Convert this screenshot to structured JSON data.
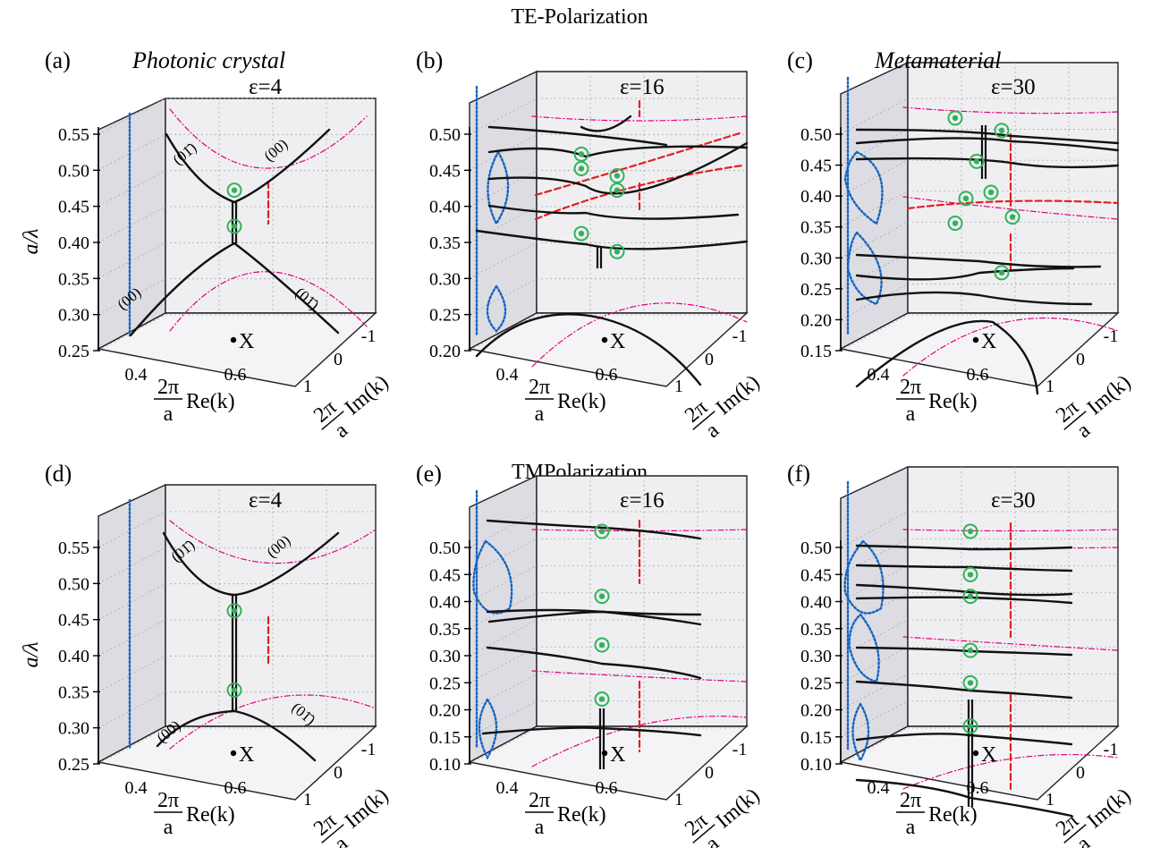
{
  "section_titles": {
    "te": "TE-Polarization",
    "tm": "TMPolarization"
  },
  "annotations": {
    "photonic": "Photonic crystal",
    "meta": "Metamaterial",
    "x_point": "X"
  },
  "axis_text": {
    "re_label": "Re(k)",
    "im_label": "Im(k)",
    "two_pi": "2π",
    "a": "a",
    "ylabel": "a/λ",
    "re_ticks": [
      "0.4",
      "0.6"
    ],
    "im_ticks": [
      "1",
      "0",
      "-1"
    ]
  },
  "colors": {
    "bands": "#111111",
    "dispersion": "#1565c0",
    "light_line": "#e0007a",
    "gap_line": "#e02020",
    "exceptional_point": "#2fb35a",
    "plane": "#efeff2",
    "side_plane": "#dcdce2"
  },
  "chart_data": [
    {
      "type": "line",
      "panel": "(a)",
      "label": "ε=4",
      "note": "Photonic crystal",
      "ylabel": "a/λ",
      "ylim": [
        0.25,
        0.55
      ],
      "yticks": [
        "0.25",
        "0.30",
        "0.35",
        "0.40",
        "0.45",
        "0.50",
        "0.55"
      ],
      "mode_labels": [
        "(01̄)",
        "(00)",
        "(00)",
        "(01̄)"
      ],
      "exceptional_points_a_over_lambda": [
        0.45,
        0.4
      ]
    },
    {
      "type": "line",
      "panel": "(b)",
      "label": "ε=16",
      "ylabel": "",
      "ylim": [
        0.2,
        0.5
      ],
      "yticks": [
        "0.20",
        "0.25",
        "0.30",
        "0.35",
        "0.40",
        "0.45",
        "0.50"
      ],
      "mode_labels": [],
      "exceptional_points_a_over_lambda": [
        0.43,
        0.4,
        0.45,
        0.42,
        0.34,
        0.315
      ]
    },
    {
      "type": "line",
      "panel": "(c)",
      "label": "ε=30",
      "note": "Metamaterial",
      "ylabel": "",
      "ylim": [
        0.15,
        0.5
      ],
      "yticks": [
        "0.15",
        "0.20",
        "0.25",
        "0.30",
        "0.35",
        "0.40",
        "0.45",
        "0.50"
      ],
      "mode_labels": [],
      "exceptional_points_a_over_lambda": [
        0.5,
        0.48,
        0.43,
        0.38,
        0.37,
        0.34,
        0.33,
        0.25
      ]
    },
    {
      "type": "line",
      "panel": "(d)",
      "label": "ε=4",
      "ylabel": "a/λ",
      "ylim": [
        0.25,
        0.55
      ],
      "yticks": [
        "0.25",
        "0.30",
        "0.35",
        "0.40",
        "0.45",
        "0.50",
        "0.55"
      ],
      "mode_labels": [
        "(01̄)",
        "(00)",
        "(00)",
        "(01̄)"
      ],
      "exceptional_points_a_over_lambda": [
        0.44,
        0.33
      ]
    },
    {
      "type": "line",
      "panel": "(e)",
      "label": "ε=16",
      "ylabel": "",
      "ylim": [
        0.1,
        0.5
      ],
      "yticks": [
        "0.10",
        "0.15",
        "0.20",
        "0.25",
        "0.30",
        "0.35",
        "0.40",
        "0.45",
        "0.50"
      ],
      "mode_labels": [],
      "exceptional_points_a_over_lambda": [
        0.5,
        0.38,
        0.29,
        0.19
      ]
    },
    {
      "type": "line",
      "panel": "(f)",
      "label": "ε=30",
      "ylabel": "",
      "ylim": [
        0.1,
        0.5
      ],
      "yticks": [
        "0.10",
        "0.15",
        "0.20",
        "0.25",
        "0.30",
        "0.35",
        "0.40",
        "0.45",
        "0.50"
      ],
      "mode_labels": [],
      "exceptional_points_a_over_lambda": [
        0.5,
        0.42,
        0.38,
        0.28,
        0.22,
        0.14
      ]
    }
  ]
}
